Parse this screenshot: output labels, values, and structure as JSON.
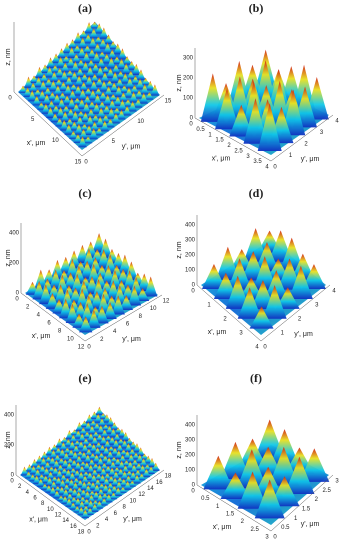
{
  "panels": [
    {
      "label": "(a)",
      "z_label": "z, nm",
      "x_label": "x', μm",
      "y_label": "y', μm",
      "z_ticks": [],
      "x_ticks": [
        "0",
        "5",
        "10",
        "15"
      ],
      "y_ticks": [
        "0",
        "5",
        "10",
        "15"
      ]
    },
    {
      "label": "(b)",
      "z_label": "z, nm",
      "x_label": "x', μm",
      "y_label": "y', μm",
      "z_ticks": [
        "300",
        "200",
        "100",
        "0"
      ],
      "x_ticks": [
        "0",
        "0.5",
        "1",
        "1.5",
        "2",
        "2.5",
        "3",
        "3.5",
        "4"
      ],
      "y_ticks": [
        "0",
        "1",
        "2",
        "3",
        "4"
      ]
    },
    {
      "label": "(c)",
      "z_label": "z, nm",
      "x_label": "x', μm",
      "y_label": "y', μm",
      "z_ticks": [
        "400",
        "200",
        "0"
      ],
      "x_ticks": [
        "0",
        "2",
        "4",
        "6",
        "8",
        "10",
        "12"
      ],
      "y_ticks": [
        "0",
        "2",
        "4",
        "6",
        "8",
        "10",
        "12"
      ]
    },
    {
      "label": "(d)",
      "z_label": "z, nm",
      "x_label": "x', μm",
      "y_label": "y', μm",
      "z_ticks": [
        "400",
        "300",
        "200",
        "100",
        "0"
      ],
      "x_ticks": [
        "0",
        "1",
        "2",
        "3",
        "4"
      ],
      "y_ticks": [
        "0",
        "1",
        "2",
        "3",
        "4"
      ]
    },
    {
      "label": "(e)",
      "z_label": "z, nm",
      "x_label": "x', μm",
      "y_label": "y', μm",
      "z_ticks": [
        "400",
        "200",
        "0"
      ],
      "x_ticks": [
        "0",
        "2",
        "4",
        "6",
        "8",
        "10",
        "12",
        "14",
        "16",
        "18"
      ],
      "y_ticks": [
        "0",
        "2",
        "4",
        "6",
        "8",
        "10",
        "12",
        "14",
        "16",
        "18"
      ]
    },
    {
      "label": "(f)",
      "z_label": "z, nm",
      "x_label": "x', μm",
      "y_label": "y', μm",
      "z_ticks": [
        "400",
        "300",
        "200",
        "100",
        "0"
      ],
      "x_ticks": [
        "0",
        "0.5",
        "1",
        "1.5",
        "2",
        "2.5",
        "3"
      ],
      "y_ticks": [
        "0",
        "0.5",
        "1",
        "1.5",
        "2",
        "2.5",
        "3"
      ]
    }
  ]
}
